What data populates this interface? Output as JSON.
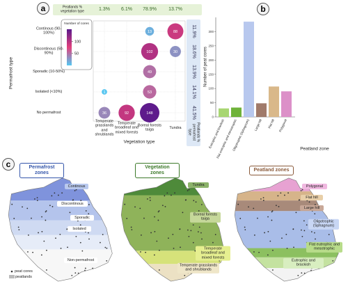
{
  "chart_data": [
    {
      "type": "bubble",
      "panel": "a",
      "x_label": "Vegetation type",
      "y_label": "Permafrost type",
      "x_categories": [
        "Temperate grasslands and shrublands",
        "Temperate broadleaf and mixed forests",
        "Boreal forests taiga",
        "Tundra"
      ],
      "y_categories": [
        "Continous (90-100%)",
        "Discontinous (50-90%)",
        "Sporadic (10-50%)",
        "Isolated (<10%)",
        "No permafrost"
      ],
      "values": [
        [
          null,
          null,
          13,
          88
        ],
        [
          null,
          null,
          102,
          30
        ],
        [
          null,
          null,
          49,
          null
        ],
        [
          1,
          null,
          53,
          null
        ],
        [
          36,
          92,
          148,
          null
        ]
      ],
      "column_header": "Peatlands % vegetation type",
      "column_labels": [
        "1.3%",
        "6.1%",
        "78.9%",
        "13.7%"
      ],
      "row_header": "Peatlands % permafrost type",
      "row_labels": [
        "11.9%",
        "18.6%",
        "13.9%",
        "14.1%",
        "41.5%"
      ],
      "colorbar": {
        "label": "Number of cores",
        "lim": [
          0,
          150
        ],
        "ticks": [
          50,
          100
        ],
        "colors": [
          "#55c8f2",
          "#e2407c",
          "#5a1a8c"
        ]
      }
    },
    {
      "type": "bar",
      "panel": "b",
      "x_label": "Peatland zone",
      "y_label": "Number of peat cores",
      "categories": [
        "Eutrophic and brackish",
        "Flat eutrophic and mesotrophic",
        "Oligotrophic (Sphagnum)",
        "Large hill",
        "Flat hill",
        "Polygonal"
      ],
      "values": [
        30,
        33,
        335,
        48,
        107,
        90
      ],
      "colors": [
        "#a8d672",
        "#6fb23a",
        "#b8c8ee",
        "#a07a6a",
        "#d9b88a",
        "#dc90c8"
      ],
      "ylim": [
        0,
        350
      ],
      "yticks": [
        0,
        50,
        100,
        150,
        200,
        250,
        300
      ]
    }
  ],
  "maps": {
    "panel": "c",
    "panels": [
      {
        "title": "Permafrost zones",
        "labels": [
          "Continous",
          "Discontinous",
          "Sporadic",
          "Isolated",
          "Non-permafrost"
        ]
      },
      {
        "title": "Vegetation zones",
        "labels": [
          "Tundra",
          "Boreal forests taiga",
          "Temperate broadleaf and mixed forests",
          "Temperate grasslands and shrublands"
        ]
      },
      {
        "title": "Peatland zones",
        "labels": [
          "Polygonal",
          "Flat hill",
          "Large hill",
          "Oligotrophic (Sphagnum)",
          "Flat eutrophic and mesotrophic",
          "Eutrophic and brackish"
        ]
      }
    ],
    "legend": [
      "peat cores",
      "peatlands"
    ]
  }
}
